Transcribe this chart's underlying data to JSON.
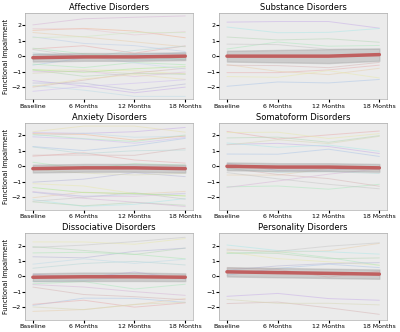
{
  "titles": [
    "Affective Disorders",
    "Substance Disorders",
    "Anxiety Disorders",
    "Somatoform Disorders",
    "Dissociative Disorders",
    "Personality Disorders"
  ],
  "xtick_labels": [
    "Baseline",
    "6 Months",
    "12 Months",
    "18 Months"
  ],
  "ylabel": "Functional Impairment",
  "ylim": [
    -2.8,
    2.8
  ],
  "yticks": [
    -2,
    -1,
    0,
    1,
    2
  ],
  "background_color": "#ebebeb",
  "n_lines": [
    25,
    10,
    22,
    14,
    16,
    12
  ],
  "mean_lines": [
    [
      -0.1,
      -0.05,
      -0.05,
      0.0
    ],
    [
      0.0,
      0.0,
      0.0,
      0.1
    ],
    [
      -0.15,
      -0.1,
      -0.1,
      -0.15
    ],
    [
      0.0,
      -0.05,
      -0.05,
      -0.1
    ],
    [
      -0.05,
      -0.02,
      -0.02,
      -0.05
    ],
    [
      0.3,
      0.25,
      0.2,
      0.15
    ]
  ],
  "ci_upper": [
    [
      0.15,
      0.2,
      0.2,
      0.25
    ],
    [
      0.35,
      0.4,
      0.45,
      0.5
    ],
    [
      0.1,
      0.15,
      0.15,
      0.1
    ],
    [
      0.25,
      0.2,
      0.2,
      0.15
    ],
    [
      0.2,
      0.25,
      0.25,
      0.2
    ],
    [
      0.6,
      0.55,
      0.5,
      0.45
    ]
  ],
  "ci_lower": [
    [
      -0.35,
      -0.3,
      -0.3,
      -0.25
    ],
    [
      -0.35,
      -0.4,
      -0.45,
      -0.3
    ],
    [
      -0.4,
      -0.35,
      -0.35,
      -0.4
    ],
    [
      -0.25,
      -0.3,
      -0.3,
      -0.35
    ],
    [
      -0.3,
      -0.29,
      -0.29,
      -0.3
    ],
    [
      0.0,
      -0.05,
      -0.1,
      -0.15
    ]
  ],
  "seeds": [
    42,
    7,
    13,
    99,
    55,
    23
  ],
  "line_alpha": 0.55,
  "line_width": 0.7,
  "mean_color": "#c06060",
  "mean_linewidth": 2.5,
  "ci_color": "#aaaaaa",
  "ci_alpha": 0.45
}
